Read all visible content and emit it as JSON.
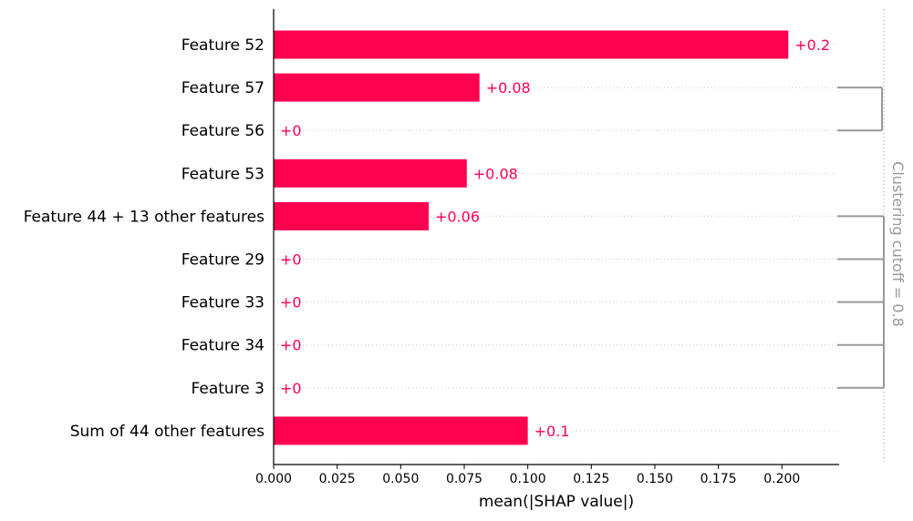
{
  "chart_data": {
    "type": "bar",
    "orientation": "horizontal",
    "categories": [
      "Feature 52",
      "Feature 57",
      "Feature 56",
      "Feature 53",
      "Feature 44 + 13 other features",
      "Feature 29",
      "Feature 33",
      "Feature 34",
      "Feature 3",
      "Sum of 44 other features"
    ],
    "values": [
      0.2025,
      0.081,
      0.0,
      0.076,
      0.061,
      0.0,
      0.0,
      0.0,
      0.0,
      0.1
    ],
    "value_labels": [
      "+0.2",
      "+0.08",
      "+0",
      "+0.08",
      "+0.06",
      "+0",
      "+0",
      "+0",
      "+0",
      "+0.1"
    ],
    "xlabel": "mean(|SHAP value|)",
    "xlim": [
      0,
      0.2225
    ],
    "xticks": [
      0.0,
      0.025,
      0.05,
      0.075,
      0.1,
      0.125,
      0.15,
      0.175,
      0.2
    ],
    "xtick_labels": [
      "0.000",
      "0.025",
      "0.050",
      "0.075",
      "0.100",
      "0.125",
      "0.150",
      "0.175",
      "0.200"
    ],
    "clustering_label": "Clustering cutoff = 0.8",
    "clustering": [
      {
        "rows": [
          1,
          2
        ]
      },
      {
        "rows": [
          4,
          5,
          6,
          7,
          8
        ]
      }
    ],
    "colors": {
      "bar": "#ff0051",
      "label": "#ff0051",
      "axis": "#000000",
      "grid": "#cccccc",
      "cluster": "#999999",
      "cutoff": "#999999"
    },
    "grid": "dotted-horizontal"
  }
}
